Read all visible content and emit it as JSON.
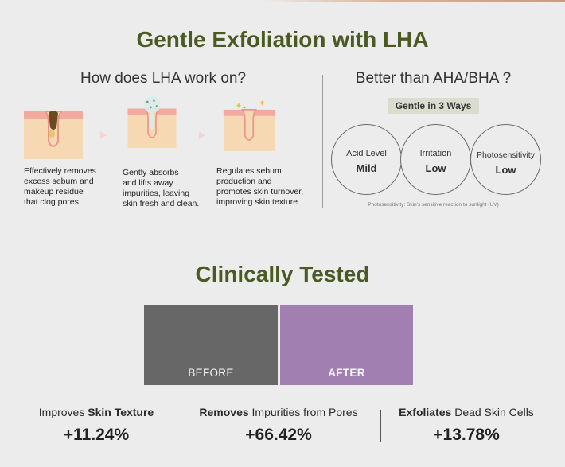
{
  "colors": {
    "title_green": "#4a5a22",
    "before_panel": "#676767",
    "after_panel": "#a17fb0",
    "badge_bg": "#d9dccf",
    "skin": "#f6d8b2",
    "skin_top": "#f2a9a0",
    "sebum": "#6b4a1e"
  },
  "header": {
    "title": "Gentle Exfoliation with LHA"
  },
  "how": {
    "heading": "How does LHA work on?",
    "steps": [
      {
        "icon": "skin-pore-clogged-icon",
        "lines": [
          "Effectively removes",
          "excess sebum and",
          "makeup residue",
          "that clog pores"
        ]
      },
      {
        "icon": "skin-pore-absorb-icon",
        "lines": [
          "Gently absorbs",
          "and lifts away",
          "impurities, leaving",
          "skin fresh and clean."
        ]
      },
      {
        "icon": "skin-pore-renewed-icon",
        "lines": [
          "Regulates sebum",
          "production and",
          "promotes skin turnover,",
          "improving skin texture"
        ]
      }
    ]
  },
  "better": {
    "heading": "Better than AHA/BHA ?",
    "badge": "Gentle in 3 Ways",
    "circles": [
      {
        "label": "Acid Level",
        "value": "Mild"
      },
      {
        "label": "Irritation",
        "value": "Low"
      },
      {
        "label": "Photosensitivity",
        "value": "Low"
      }
    ],
    "footnote": "Photosensitivity: Skin's sensitive reaction to sunlight (UV)"
  },
  "clinical": {
    "title": "Clinically Tested",
    "before_label": "BEFORE",
    "after_label": "AFTER",
    "stats": [
      {
        "pre": "Improves ",
        "bold": "Skin Texture",
        "post": "",
        "value": "+11.24%"
      },
      {
        "pre": "",
        "bold": "Removes",
        "post": " Impurities from Pores",
        "value": "+66.42%"
      },
      {
        "pre": "",
        "bold": "Exfoliates",
        "post": " Dead Skin Cells",
        "value": "+13.78%"
      }
    ]
  }
}
